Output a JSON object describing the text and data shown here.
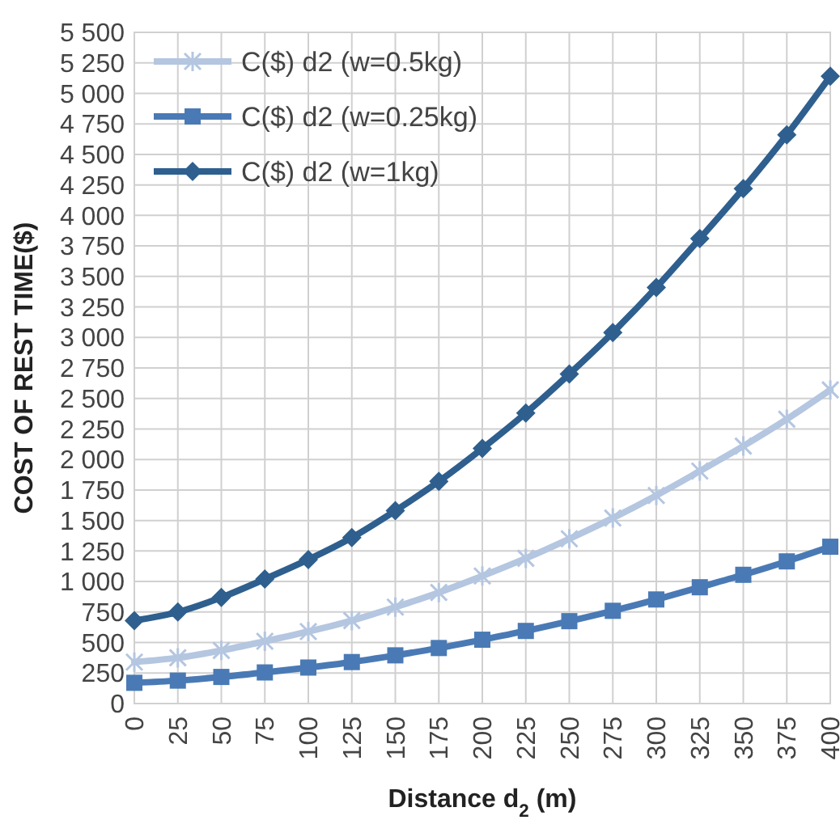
{
  "chart_data": {
    "type": "line",
    "xlabel": "Distance d$_{2}$ (m)",
    "ylabel": "COST OF REST TIME($)",
    "x": [
      0,
      25,
      50,
      75,
      100,
      125,
      150,
      175,
      200,
      225,
      250,
      275,
      300,
      325,
      350,
      375,
      400
    ],
    "xlim": [
      0,
      400
    ],
    "xticks": [
      0,
      25,
      50,
      75,
      100,
      125,
      150,
      175,
      200,
      225,
      250,
      275,
      300,
      325,
      350,
      375,
      400
    ],
    "ylim": [
      0,
      5500
    ],
    "yticks": [
      0,
      250,
      500,
      750,
      {
        "value": 1000,
        "label": "1 000"
      },
      {
        "value": 1250,
        "label": "1 250"
      },
      {
        "value": 1500,
        "label": "1 500"
      },
      {
        "value": 1750,
        "label": "1 750"
      },
      {
        "value": 2000,
        "label": "2 000"
      },
      {
        "value": 2250,
        "label": "2 250"
      },
      {
        "value": 2500,
        "label": "2 500"
      },
      {
        "value": 2750,
        "label": "2 750"
      },
      {
        "value": 3000,
        "label": "3 000"
      },
      {
        "value": 3250,
        "label": "3 250"
      },
      {
        "value": 3500,
        "label": "3 500"
      },
      {
        "value": 3750,
        "label": "3 750"
      },
      {
        "value": 4000,
        "label": "4 000"
      },
      {
        "value": 4250,
        "label": "4 250"
      },
      {
        "value": 4500,
        "label": "4 500"
      },
      {
        "value": 4750,
        "label": "4 750"
      },
      {
        "value": 5000,
        "label": "5 000"
      },
      {
        "value": 5250,
        "label": "5 250"
      },
      {
        "value": 5500,
        "label": "5 500"
      }
    ],
    "grid": true,
    "legend": "top left",
    "series": [
      {
        "name": "C($) d2 (w=0.5kg)",
        "color": "#b4c6e0",
        "marker": "cross",
        "values": [
          340,
          375,
          435,
          510,
          590,
          680,
          790,
          910,
          1045,
          1190,
          1350,
          1520,
          1705,
          1905,
          2110,
          2330,
          2570
        ]
      },
      {
        "name": "C($) d2 (w=0.25kg)",
        "color": "#4a7ab5",
        "marker": "square",
        "values": [
          170,
          188,
          218,
          255,
          295,
          340,
          395,
          455,
          523,
          595,
          675,
          760,
          853,
          953,
          1055,
          1165,
          1285
        ]
      },
      {
        "name": "C($) d2 (w=1kg)",
        "color": "#2e5f8e",
        "marker": "diamond",
        "values": [
          680,
          750,
          870,
          1020,
          1180,
          1360,
          1580,
          1820,
          2090,
          2380,
          2700,
          3040,
          3410,
          3810,
          4220,
          4660,
          5140
        ]
      }
    ]
  }
}
